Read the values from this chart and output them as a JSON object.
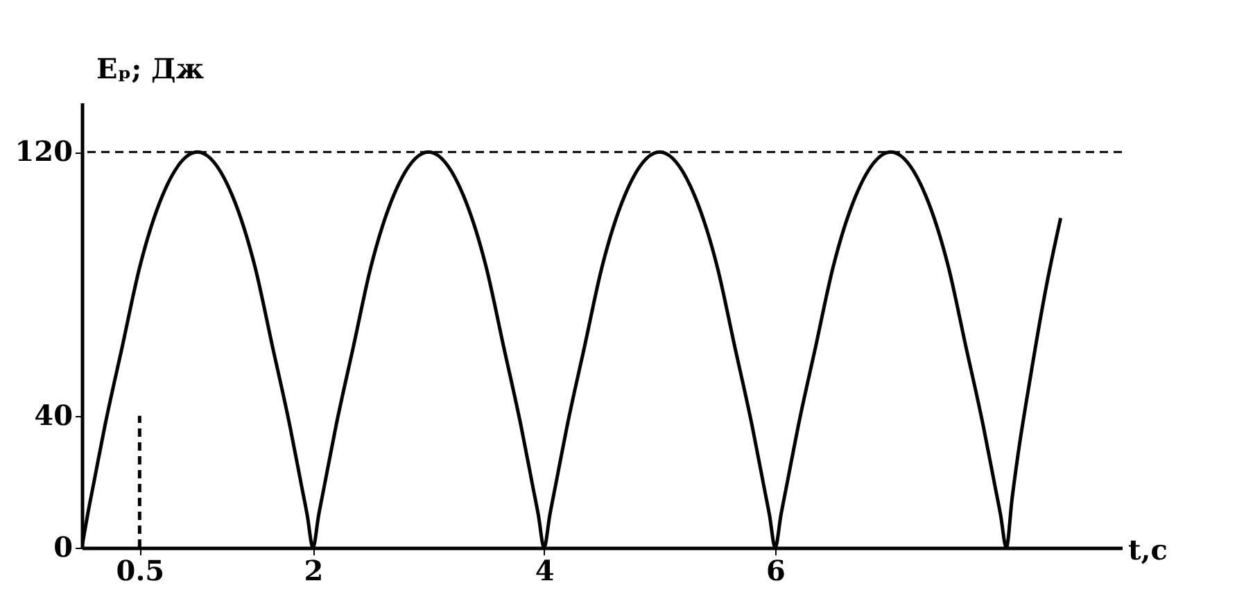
{
  "chart_data": {
    "type": "line",
    "xlabel": "t,c",
    "ylabel": "Eₚ; Дж",
    "xlim": [
      0,
      9
    ],
    "ylim": [
      0,
      135
    ],
    "xticks": [
      0.5,
      2,
      4,
      6
    ],
    "yticks": [
      0,
      40,
      120
    ],
    "grid": false,
    "marker": "none",
    "series": [
      {
        "color": "#000000",
        "line_style": "solid",
        "x": [
          0,
          0.05,
          0.1,
          0.2,
          0.35,
          0.5,
          0.7,
          1,
          1.3,
          1.5,
          1.65,
          1.8,
          1.9,
          1.95,
          2,
          2.05,
          2.1,
          2.2,
          2.35,
          2.5,
          2.7,
          3,
          3.3,
          3.5,
          3.65,
          3.8,
          3.9,
          3.95,
          4,
          4.05,
          4.1,
          4.2,
          4.35,
          4.5,
          4.7,
          5,
          5.3,
          5.5,
          5.65,
          5.8,
          5.9,
          5.95,
          6,
          6.05,
          6.1,
          6.2,
          6.35,
          6.5,
          6.7,
          7,
          7.3,
          7.5,
          7.65,
          7.8,
          7.9,
          7.95,
          8,
          8.05,
          8.1,
          8.2,
          8.35,
          8.47
        ],
        "values": [
          0,
          10,
          19,
          37,
          61,
          85,
          107,
          120,
          107,
          85,
          61,
          37,
          19,
          10,
          0,
          10,
          19,
          37,
          61,
          85,
          107,
          120,
          107,
          85,
          61,
          37,
          19,
          10,
          0,
          10,
          19,
          37,
          61,
          85,
          107,
          120,
          107,
          85,
          61,
          37,
          19,
          10,
          0,
          10,
          19,
          37,
          61,
          85,
          107,
          120,
          107,
          85,
          61,
          37,
          19,
          10,
          0,
          15,
          28,
          50,
          80,
          100
        ]
      },
      {
        "color": "#000000",
        "line_style": "dashed",
        "x": [
          0.5,
          0.5
        ],
        "values": [
          0,
          40
        ]
      }
    ],
    "ref_lines": [
      {
        "axis": "y",
        "value": 120,
        "color": "#000000",
        "line_style": "dashed"
      }
    ]
  }
}
